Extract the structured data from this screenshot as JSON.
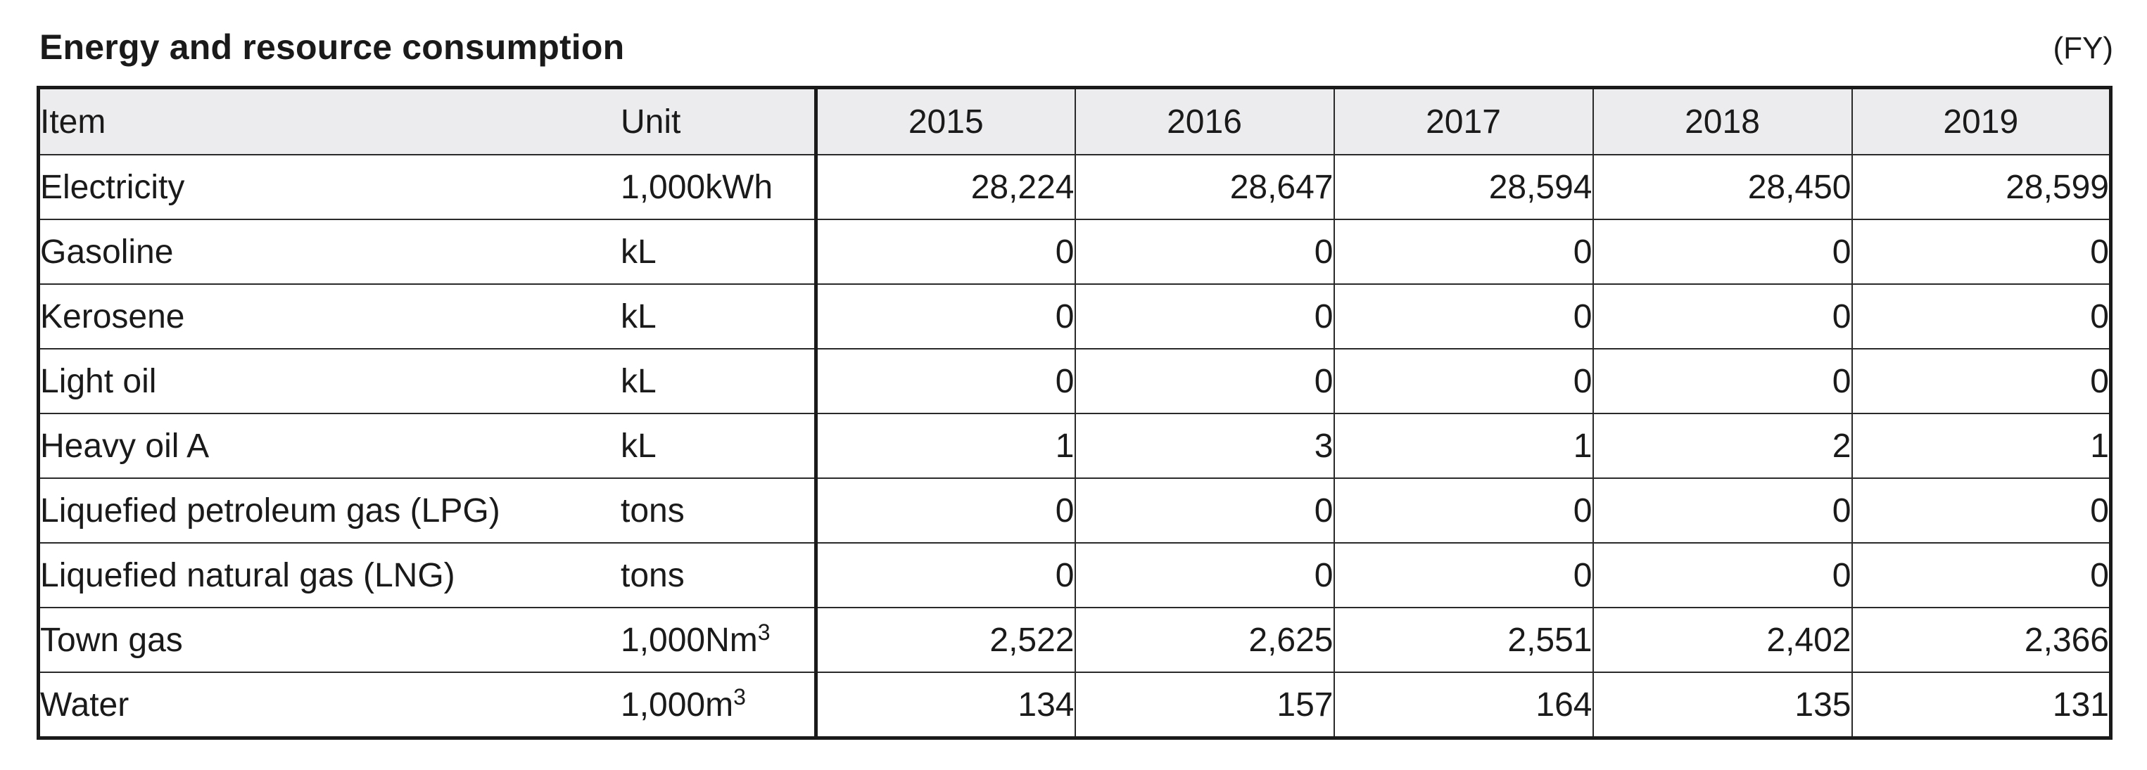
{
  "title": "Energy and resource consumption",
  "fiscal_note": "(FY)",
  "columns": {
    "item": "Item",
    "unit": "Unit",
    "years": [
      "2015",
      "2016",
      "2017",
      "2018",
      "2019"
    ]
  },
  "rows": [
    {
      "item": "Electricity",
      "unit": "1,000kWh",
      "unit_sup": "",
      "values": [
        "28,224",
        "28,647",
        "28,594",
        "28,450",
        "28,599"
      ]
    },
    {
      "item": "Gasoline",
      "unit": "kL",
      "unit_sup": "",
      "values": [
        "0",
        "0",
        "0",
        "0",
        "0"
      ]
    },
    {
      "item": "Kerosene",
      "unit": "kL",
      "unit_sup": "",
      "values": [
        "0",
        "0",
        "0",
        "0",
        "0"
      ]
    },
    {
      "item": "Light oil",
      "unit": "kL",
      "unit_sup": "",
      "values": [
        "0",
        "0",
        "0",
        "0",
        "0"
      ]
    },
    {
      "item": "Heavy oil A",
      "unit": "kL",
      "unit_sup": "",
      "values": [
        "1",
        "3",
        "1",
        "2",
        "1"
      ]
    },
    {
      "item": "Liquefied petroleum gas (LPG)",
      "unit": "tons",
      "unit_sup": "",
      "values": [
        "0",
        "0",
        "0",
        "0",
        "0"
      ]
    },
    {
      "item": "Liquefied natural gas (LNG)",
      "unit": "tons",
      "unit_sup": "",
      "values": [
        "0",
        "0",
        "0",
        "0",
        "0"
      ]
    },
    {
      "item": "Town gas",
      "unit": "1,000Nm",
      "unit_sup": "3",
      "values": [
        "2,522",
        "2,625",
        "2,551",
        "2,402",
        "2,366"
      ]
    },
    {
      "item": "Water",
      "unit": "1,000m",
      "unit_sup": "3",
      "values": [
        "134",
        "157",
        "164",
        "135",
        "131"
      ]
    }
  ]
}
